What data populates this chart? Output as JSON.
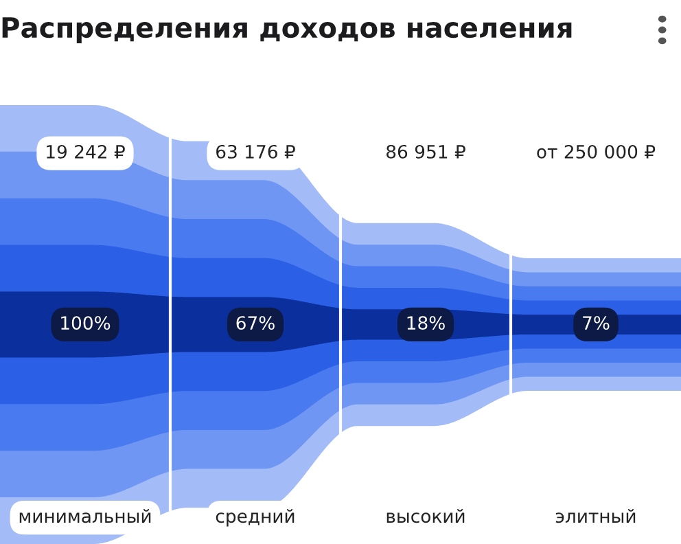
{
  "chart_data": {
    "type": "other",
    "title": "Распределения доходов населения",
    "categories": [
      "минимальный",
      "средний",
      "высокий",
      "элитный"
    ],
    "values": [
      100,
      67,
      18,
      7
    ],
    "value_labels": [
      "100%",
      "67%",
      "18%",
      "7%"
    ],
    "annotations": [
      {
        "text": "19 242 ₽",
        "x": "минимальный"
      },
      {
        "text": "63 176 ₽",
        "x": "средний"
      },
      {
        "text": "86 951 ₽",
        "x": "высокий"
      },
      {
        "text": "от 250 000 ₽",
        "x": "элитный"
      }
    ]
  }
}
